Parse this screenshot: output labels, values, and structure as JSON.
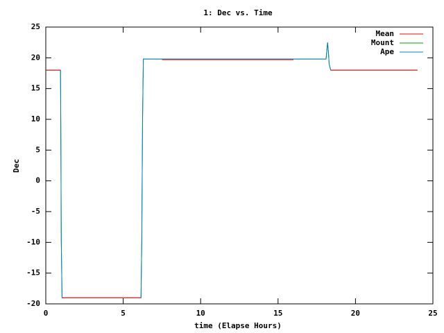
{
  "chart_data": {
    "type": "line",
    "title": "1: Dec vs. Time",
    "xlabel": "time (Elapse Hours)",
    "ylabel": "Dec",
    "x": [
      0,
      0.95,
      0.97,
      1.0,
      1.05,
      2,
      4,
      6.15,
      6.2,
      6.25,
      6.3,
      7.5,
      12,
      16,
      18.1,
      18.2,
      18.25,
      18.3,
      18.4,
      21,
      24
    ],
    "series": [
      {
        "name": "Mean",
        "color": "#ff0000",
        "values": [
          18,
          18,
          null,
          null,
          -19,
          -19,
          -19,
          -19,
          null,
          null,
          null,
          19.7,
          19.7,
          19.7,
          null,
          null,
          null,
          null,
          18,
          18,
          18
        ]
      },
      {
        "name": "Mount",
        "color": "#00a000",
        "values": [
          18,
          18,
          8.7,
          -9.7,
          -19,
          -19,
          -19,
          -19,
          -9.5,
          10,
          19.8,
          19.8,
          19.8,
          19.8,
          19.8,
          22.5,
          21,
          19,
          18,
          18,
          18
        ]
      },
      {
        "name": "Ape",
        "color": "#0080c0",
        "values": [
          18,
          18,
          8.7,
          -9.7,
          -19,
          -19,
          -19,
          -19,
          -9.5,
          10,
          19.8,
          19.8,
          19.8,
          19.8,
          19.8,
          22.5,
          21,
          19,
          18,
          18,
          18
        ]
      }
    ],
    "xlim": [
      0,
      25
    ],
    "xticks": [
      0,
      5,
      10,
      15,
      20,
      25
    ],
    "ylim": [
      -20,
      25
    ],
    "yticks": [
      -20,
      -15,
      -10,
      -5,
      0,
      5,
      10,
      15,
      20,
      25
    ],
    "legend": "top-right"
  }
}
